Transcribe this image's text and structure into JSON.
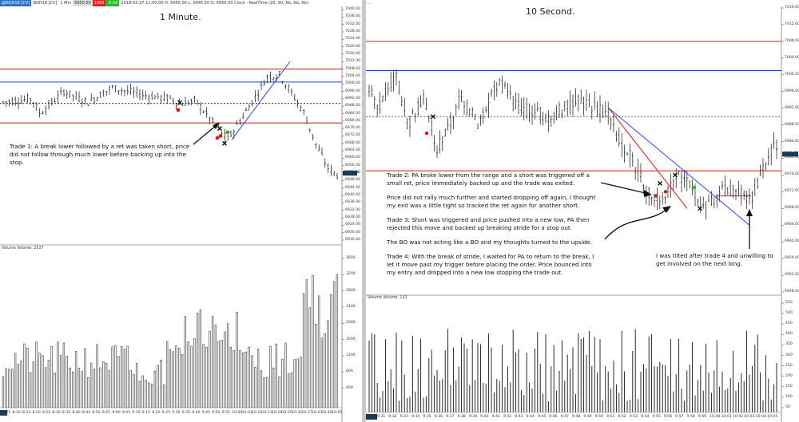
{
  "left_chart": {
    "header": {
      "symbol": "@NQH18 [CV]",
      "symbol_name": "NQH18 [CV]",
      "interval": "1 Min",
      "ask": "6950.50",
      "bid": "1093",
      "chg": "-5.50",
      "info": "2018-02-27 11:00:00 H: 6956.00 L: 6945.50 O: 6956.00 Clock - RealTime  (20, 90, No, No, No)"
    },
    "title": "1 Minute.",
    "annotation": "Trade 1:  A break lower followed by a ret was taken short, price did not follow through much lower before backing up into the stop.",
    "volume_label": "Volume  Volume: 2537",
    "price_ticks": [
      "7040.00",
      "7036.00",
      "7032.00",
      "7028.00",
      "7024.00",
      "7020.00",
      "7016.00",
      "7012.00",
      "7008.00",
      "7004.00",
      "7000.00",
      "6996.00",
      "6992.00",
      "6988.00",
      "6984.00",
      "6980.00",
      "6976.00",
      "6972.00",
      "6968.00",
      "6964.00",
      "6960.00",
      "6956.00",
      "6952.00",
      "6948.00",
      "6944.00",
      "6940.00",
      "6936.00",
      "6932.00",
      "6928.00",
      "6924.00",
      "6920.00",
      "6916.00"
    ],
    "current_price": "6952.00",
    "volume_ticks": [
      "3600",
      "3200",
      "2800",
      "2400",
      "2000",
      "1600",
      "1200",
      "800",
      "400"
    ],
    "time_ticks": [
      "8:05",
      "8:10",
      "8:15",
      "8:20",
      "8:25",
      "8:30",
      "8:35",
      "8:40",
      "8:45",
      "8:50",
      "8:55",
      "9:00",
      "9:05",
      "9:10",
      "9:15",
      "9:20",
      "9:25",
      "9:30",
      "9:35",
      "9:40",
      "9:45",
      "9:50",
      "9:55",
      "10:00",
      "10:01",
      "10:10",
      "10:13",
      "10:19",
      "10:25",
      "10:31",
      "10:37",
      "10:43",
      "10:49",
      "10:55"
    ]
  },
  "right_chart": {
    "header": {
      "info": "..."
    },
    "title": "10 Second.",
    "trade2": "Trade 2:  PA broke lower from the range and a short was triggered off a small ret, price immediately backed up and the trade was exited.",
    "trade2b": "Price did not rally much further and started dropping off again, I thought my exit was a little tight so tracked the ret again for another short.",
    "trade3": "Trade 3:  Short was triggered and price pushed into a new low, PA then rejected this move and backed up breaking stride for a stop out.",
    "trade3b": "The BO was not acting like a BO and my thoughts turned to the upside.",
    "trade4": "Trade 4:  With the break of stride, I waited for PA to return to the break, I let it move past my trigger before placing the order.  Price bounced into my entry and dropped into a new low stopping the trade out.",
    "tilt_note": "I was tilted after trade 4 and unwilling to get involved on the next long.",
    "volume_label": "Volume  Volume: 132",
    "price_ticks": [
      "7016.00",
      "7012.00",
      "7008.00",
      "7004.00",
      "7000.00",
      "6996.00",
      "6992.00",
      "6988.00",
      "6984.00",
      "6980.00",
      "6976.00",
      "6972.00",
      "6968.00",
      "6964.00",
      "6960.00",
      "6956.00",
      "6952.00",
      "6948.00"
    ],
    "current_price": "6981.00",
    "volume_ticks": [
      "550",
      "500",
      "450",
      "400",
      "350",
      "300",
      "250",
      "200",
      "150",
      "100",
      "50"
    ],
    "time_ticks": [
      "9:31",
      "9:32",
      "9:33",
      "9:34",
      "9:35",
      "9:36",
      "9:37",
      "9:38",
      "9:39",
      "9:40",
      "9:41",
      "9:42",
      "9:43",
      "9:44",
      "9:45",
      "9:46",
      "9:47",
      "9:48",
      "9:49",
      "9:50",
      "9:51",
      "9:52",
      "9:53",
      "9:54",
      "9:55",
      "9:56",
      "9:57",
      "9:58",
      "9:59",
      "10:00",
      "10:01",
      "10:02",
      "10:03",
      "10:04",
      "10:05"
    ]
  },
  "colors": {
    "red_level": "#d11a1a",
    "blue_level": "#1a3ad1",
    "trendline_blue": "#2244ee",
    "trendline_red": "#e01010"
  }
}
